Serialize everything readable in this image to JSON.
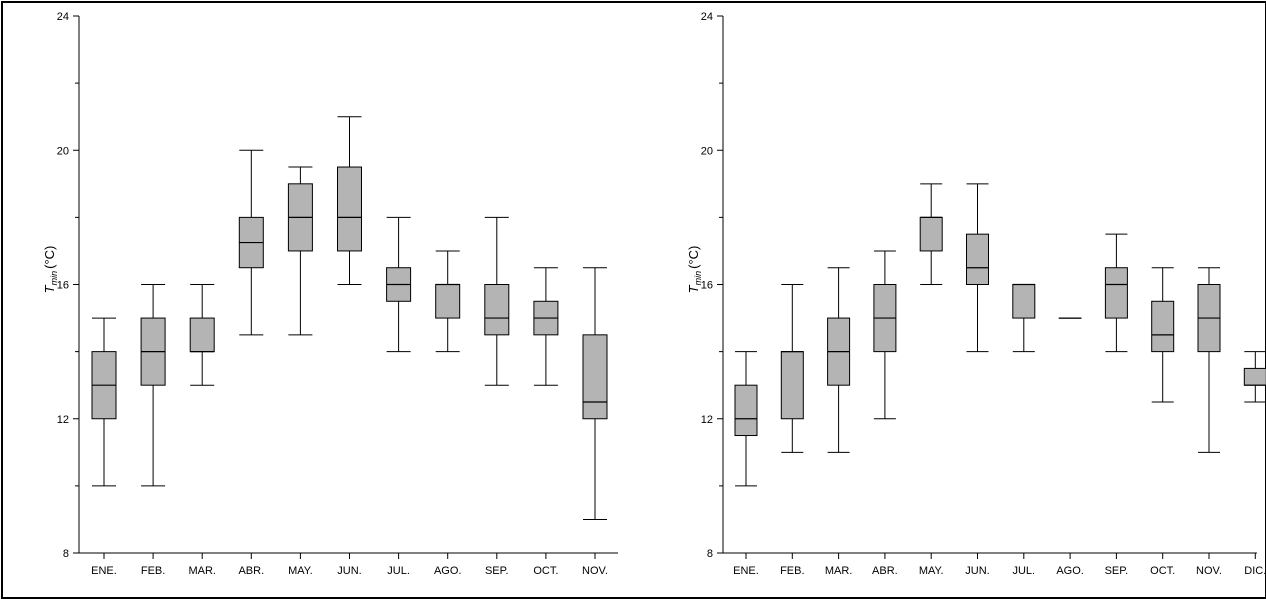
{
  "chart_data": [
    {
      "type": "box",
      "ylabel": {
        "main": "T",
        "sub": "min",
        "unit": "(°C)"
      },
      "ylim": [
        8,
        24
      ],
      "yticks": [
        8,
        12,
        16,
        20,
        24
      ],
      "categories": [
        "ENE.",
        "FEB.",
        "MAR.",
        "ABR.",
        "MAY.",
        "JUN.",
        "JUL.",
        "AGO.",
        "SEP.",
        "OCT.",
        "NOV."
      ],
      "boxes": [
        {
          "min": 10,
          "q1": 12,
          "median": 13,
          "q3": 14,
          "max": 15
        },
        {
          "min": 10,
          "q1": 13,
          "median": 14,
          "q3": 15,
          "max": 16
        },
        {
          "min": 13,
          "q1": 14,
          "median": 14,
          "q3": 15,
          "max": 16
        },
        {
          "min": 14.5,
          "q1": 16.5,
          "median": 17.25,
          "q3": 18,
          "max": 20
        },
        {
          "min": 14.5,
          "q1": 17,
          "median": 18,
          "q3": 19,
          "max": 19.5
        },
        {
          "min": 16,
          "q1": 17,
          "median": 18,
          "q3": 19.5,
          "max": 21
        },
        {
          "min": 14,
          "q1": 15.5,
          "median": 16,
          "q3": 16.5,
          "max": 18
        },
        {
          "min": 14,
          "q1": 15,
          "median": 16,
          "q3": 16,
          "max": 17
        },
        {
          "min": 13,
          "q1": 14.5,
          "median": 15,
          "q3": 16,
          "max": 18
        },
        {
          "min": 13,
          "q1": 14.5,
          "median": 15,
          "q3": 15.5,
          "max": 16.5
        },
        {
          "min": 9,
          "q1": 12,
          "median": 12.5,
          "q3": 14.5,
          "max": 16.5
        }
      ],
      "box_color": "#b4b4b4",
      "line_color": "#000000"
    },
    {
      "type": "box",
      "ylabel": {
        "main": "T",
        "sub": "min",
        "unit": "(°C)"
      },
      "ylim": [
        8,
        24
      ],
      "yticks": [
        8,
        12,
        16,
        20,
        24
      ],
      "categories": [
        "ENE.",
        "FEB.",
        "MAR.",
        "ABR.",
        "MAY.",
        "JUN.",
        "JUL.",
        "AGO.",
        "SEP.",
        "OCT.",
        "NOV.",
        "DIC."
      ],
      "boxes": [
        {
          "min": 10,
          "q1": 11.5,
          "median": 12,
          "q3": 13,
          "max": 14
        },
        {
          "min": 11,
          "q1": 12,
          "median": 14,
          "q3": 14,
          "max": 16
        },
        {
          "min": 11,
          "q1": 13,
          "median": 14,
          "q3": 15,
          "max": 16.5
        },
        {
          "min": 12,
          "q1": 14,
          "median": 15,
          "q3": 16,
          "max": 17
        },
        {
          "min": 16,
          "q1": 17,
          "median": 18,
          "q3": 18,
          "max": 19
        },
        {
          "min": 14,
          "q1": 16,
          "median": 16.5,
          "q3": 17.5,
          "max": 19
        },
        {
          "min": 14,
          "q1": 15,
          "median": 16,
          "q3": 16,
          "max": 16
        },
        {
          "min": 15,
          "q1": 15,
          "median": 15,
          "q3": 15,
          "max": 15
        },
        {
          "min": 14,
          "q1": 15,
          "median": 16,
          "q3": 16.5,
          "max": 17.5
        },
        {
          "min": 12.5,
          "q1": 14,
          "median": 14.5,
          "q3": 15.5,
          "max": 16.5
        },
        {
          "min": 11,
          "q1": 14,
          "median": 15,
          "q3": 16,
          "max": 16.5
        },
        {
          "min": 12.5,
          "q1": 13,
          "median": 13,
          "q3": 13.5,
          "max": 14
        }
      ],
      "box_color": "#b4b4b4",
      "line_color": "#000000"
    }
  ]
}
